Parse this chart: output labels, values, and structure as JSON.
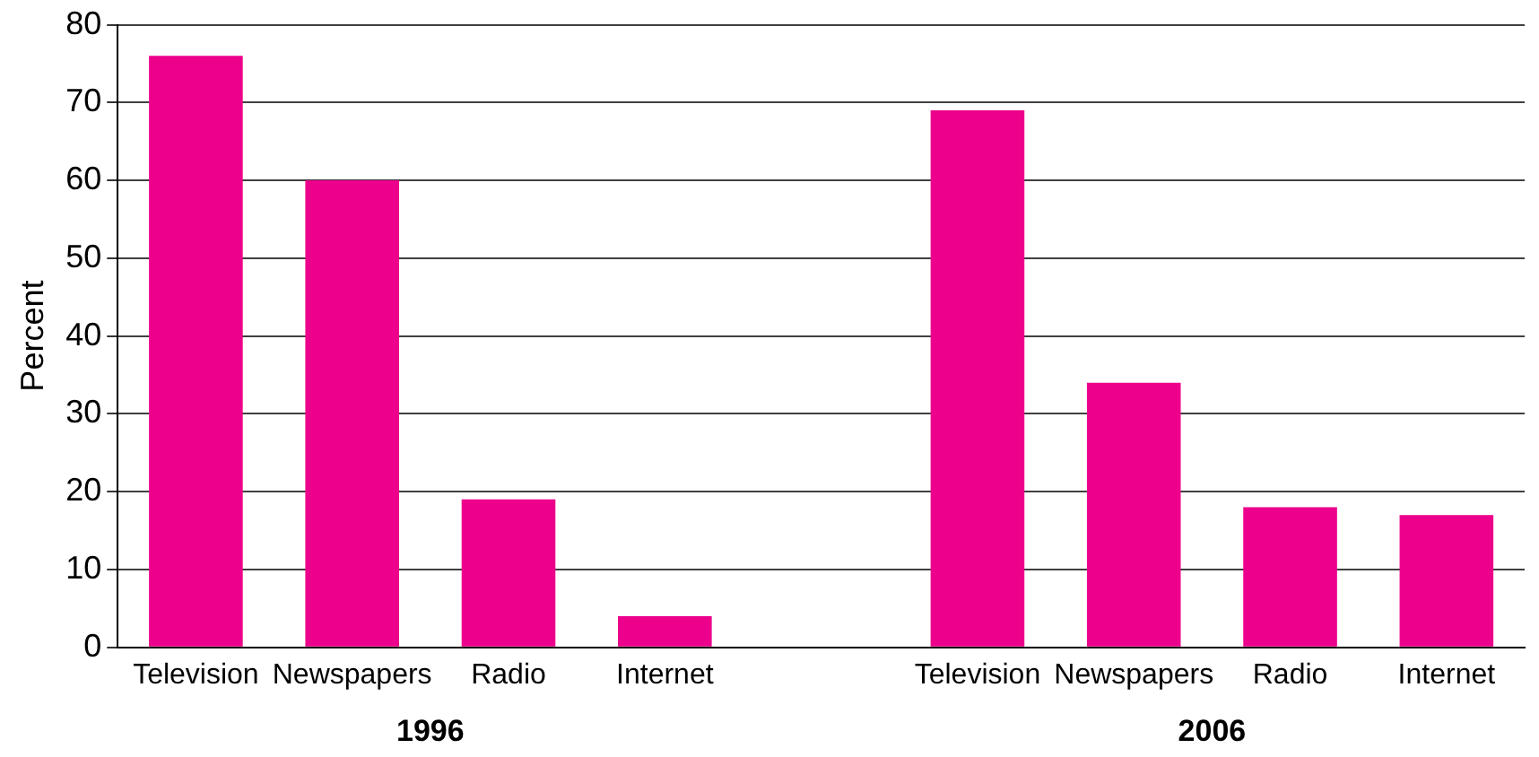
{
  "chart_data": {
    "type": "bar",
    "ylabel": "Percent",
    "categories": [
      "Television",
      "Newspapers",
      "Radio",
      "Internet",
      null,
      "Television",
      "Newspapers",
      "Radio",
      "Internet"
    ],
    "values": [
      76,
      60,
      19,
      4,
      null,
      69,
      34,
      18,
      17
    ],
    "color": "#ec008c",
    "ylim": [
      0,
      80
    ],
    "yticks": [
      0,
      10,
      20,
      30,
      40,
      50,
      60,
      70,
      80
    ],
    "grid": "y",
    "legend": false,
    "annotations": [
      "1996",
      "2006"
    ]
  }
}
